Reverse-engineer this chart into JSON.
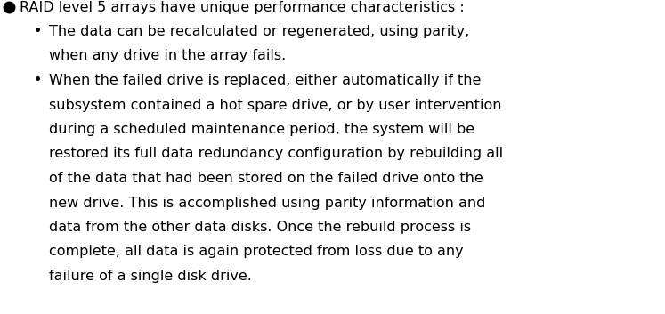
{
  "background_color": "#ffffff",
  "text_color": "#000000",
  "font_family": "DejaVu Sans",
  "main_fontsize": 11.5,
  "sub_fontsize": 11.5,
  "bullet_marker_size": 9,
  "fig_width": 7.47,
  "fig_height": 3.53,
  "dpi": 100,
  "main_heading": "RAID level 5 arrays have unique performance characteristics :",
  "sub_bullet_char": "•",
  "sub_items": [
    {
      "lines": [
        "The data can be recalculated or regenerated, using parity,",
        "when any drive in the array fails."
      ]
    },
    {
      "lines": [
        "When the failed drive is replaced, either automatically if the",
        "subsystem contained a hot spare drive, or by user intervention",
        "during a scheduled maintenance period, the system will be",
        "restored its full data redundancy configuration by rebuilding all",
        "of the data that had been stored on the failed drive onto the",
        "new drive. This is accomplished using parity information and",
        "data from the other data disks. Once the rebuild process is",
        "complete, all data is again protected from loss due to any",
        "failure of a single disk drive."
      ]
    }
  ]
}
